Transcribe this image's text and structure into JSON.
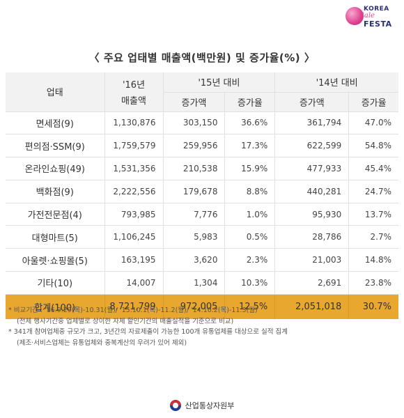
{
  "logo": {
    "line1": "KOREA",
    "line2": "Sale",
    "line3": "FESTA"
  },
  "title": "〈 주요 업태별 매출액(백만원) 및 증가율(%) 〉",
  "header": {
    "category": "업태",
    "y16_line1": "'16년",
    "y16_line2": "매출액",
    "vs15": "'15년 대비",
    "vs14": "'14년 대비",
    "inc_amount": "증가액",
    "inc_rate": "증가율"
  },
  "rows": [
    {
      "name": "면세점(9)",
      "sales16": "1,130,876",
      "inc15": "303,150",
      "rate15": "36.6%",
      "inc14": "361,794",
      "rate14": "47.0%"
    },
    {
      "name": "편의점·SSM(9)",
      "sales16": "1,759,579",
      "inc15": "259,956",
      "rate15": "17.3%",
      "inc14": "622,599",
      "rate14": "54.8%"
    },
    {
      "name": "온라인쇼핑(49)",
      "sales16": "1,531,356",
      "inc15": "210,538",
      "rate15": "15.9%",
      "inc14": "477,933",
      "rate14": "45.4%"
    },
    {
      "name": "백화점(9)",
      "sales16": "2,222,556",
      "inc15": "179,678",
      "rate15": "8.8%",
      "inc14": "440,281",
      "rate14": "24.7%"
    },
    {
      "name": "가전전문점(4)",
      "sales16": "793,985",
      "inc15": "7,776",
      "rate15": "1.0%",
      "inc14": "95,930",
      "rate14": "13.7%"
    },
    {
      "name": "대형마트(5)",
      "sales16": "1,106,245",
      "inc15": "5,983",
      "rate15": "0.5%",
      "inc14": "28,786",
      "rate14": "2.7%"
    },
    {
      "name": "아울렛·쇼핑몰(5)",
      "sales16": "163,195",
      "inc15": "3,620",
      "rate15": "2.3%",
      "inc14": "21,003",
      "rate14": "14.8%"
    },
    {
      "name": "기타(10)",
      "sales16": "14,007",
      "inc15": "1,304",
      "rate15": "10.3%",
      "inc14": "2,691",
      "rate14": "23.8%"
    }
  ],
  "total": {
    "name": "합계(100)",
    "sales16": "8,721,799",
    "inc15": "972,005",
    "rate15": "12.5%",
    "inc14": "2,051,018",
    "rate14": "30.7%"
  },
  "notes": {
    "n1": "* 비교기간 : '16.9.29(목)-10.31(월)/ '15.10.1(목)-11.2(월)/ '14.10.2(목)-11.3(월)",
    "n1b": "(전체 행사기간중 업체별로 상이한 자체 할인기간의 매출실적을 기준으로 비교)",
    "n2": "* 341개 참여업체중 규모가 크고, 3년간의 자료제출이 가능한 100개 유통업체를 대상으로 실적 집계",
    "n2b": "(제조·서비스업체는 유통업체와 중복계산의 우려가 있어 제외)"
  },
  "footer": {
    "ministry": "산업통상자원부"
  },
  "colors": {
    "total_row": "#e8a830",
    "header_bg": "#f2f2f2"
  }
}
